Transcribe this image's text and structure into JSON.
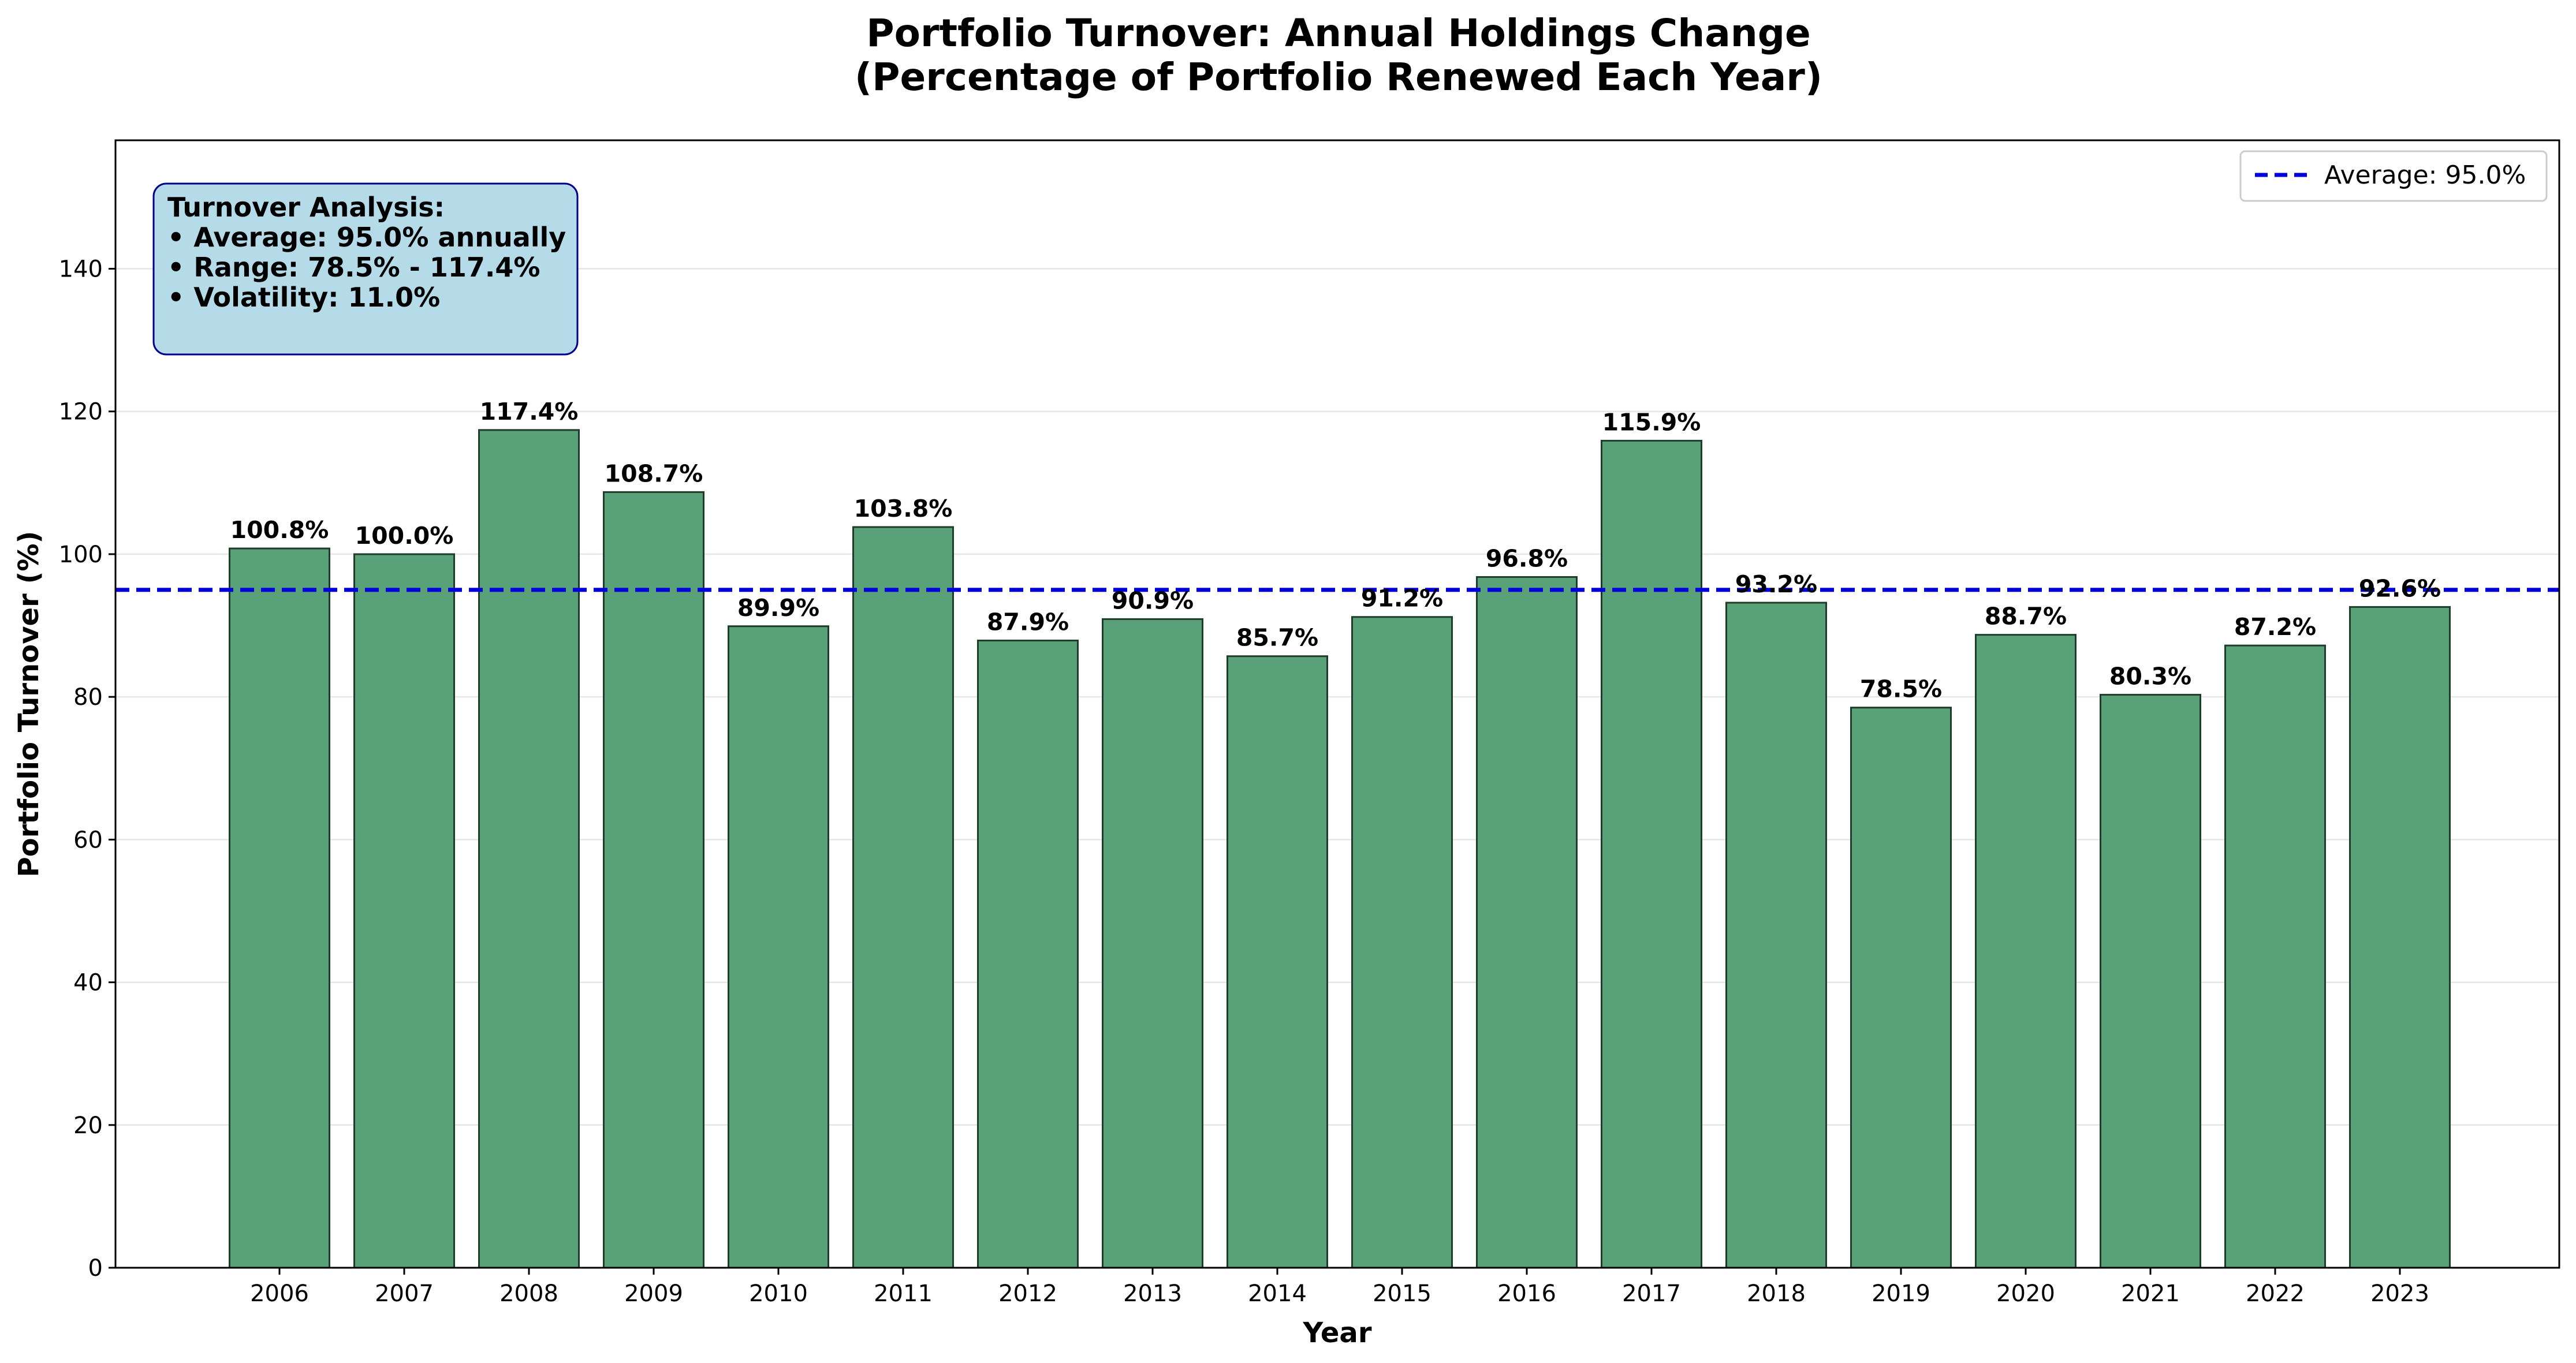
{
  "chart_data": {
    "type": "bar",
    "title": [
      "Portfolio Turnover: Annual Holdings Change",
      "(Percentage of Portfolio Renewed Each Year)"
    ],
    "xlabel": "Year",
    "ylabel": "Portfolio Turnover (%)",
    "ylim": [
      0,
      158
    ],
    "yticks": [
      0,
      20,
      40,
      60,
      80,
      100,
      120,
      140
    ],
    "grid": "horizontal",
    "categories": [
      "2006",
      "2007",
      "2008",
      "2009",
      "2010",
      "2011",
      "2012",
      "2013",
      "2014",
      "2015",
      "2016",
      "2017",
      "2018",
      "2019",
      "2020",
      "2021",
      "2022",
      "2023"
    ],
    "values": [
      100.8,
      100.0,
      117.4,
      108.7,
      89.9,
      103.8,
      87.9,
      90.9,
      85.7,
      91.2,
      96.8,
      115.9,
      93.2,
      78.5,
      88.7,
      80.3,
      87.2,
      92.6
    ],
    "data_labels": [
      "100.8%",
      "100.0%",
      "117.4%",
      "108.7%",
      "89.9%",
      "103.8%",
      "87.9%",
      "90.9%",
      "85.7%",
      "91.2%",
      "96.8%",
      "115.9%",
      "93.2%",
      "78.5%",
      "88.7%",
      "80.3%",
      "87.2%",
      "92.6%"
    ],
    "bar_color": "#59a279",
    "bar_edge_color": "#1f3b2a",
    "average_line": {
      "value": 95.0,
      "color": "#0000dd",
      "style": "dashed",
      "legend_label": "Average: 95.0%"
    },
    "legend_position": "top-right",
    "annotation": {
      "position": "top-left",
      "background": "#b5dbe9",
      "border": "#00008b",
      "lines": [
        "Turnover Analysis:",
        "• Average: 95.0% annually",
        "• Range: 78.5% - 117.4%",
        "• Volatility: 11.0%"
      ]
    }
  }
}
